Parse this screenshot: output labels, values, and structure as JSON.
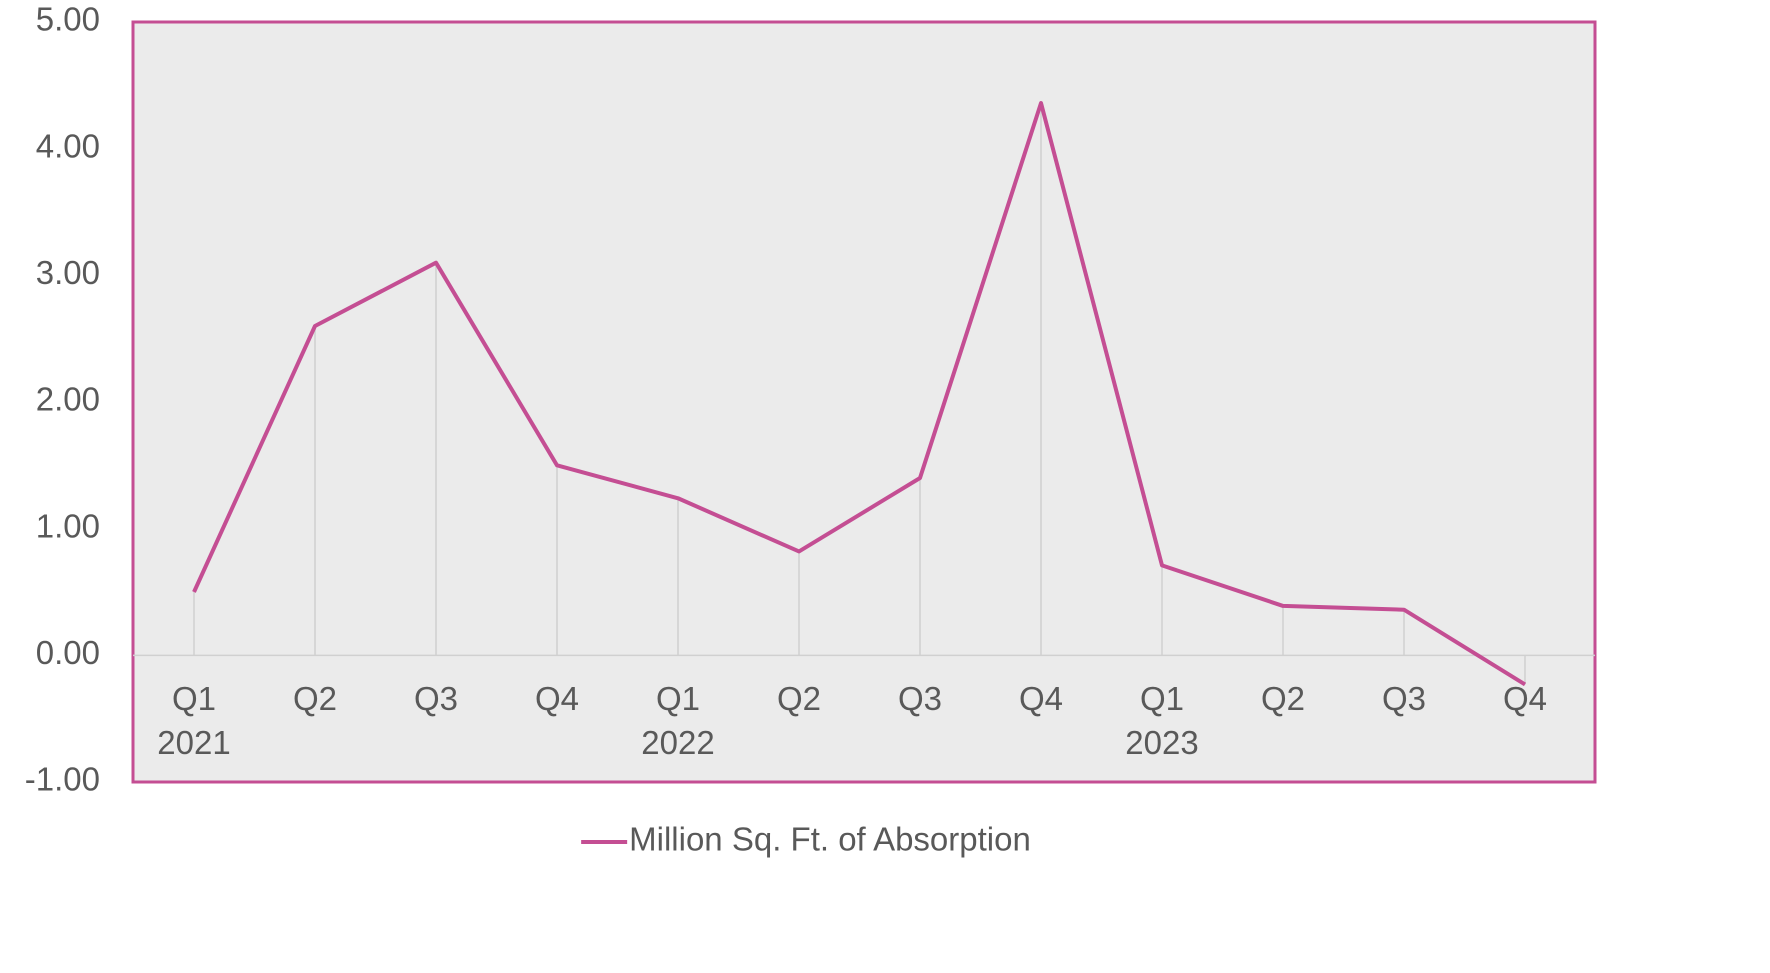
{
  "chart_data": {
    "type": "line",
    "categories": [
      "Q1",
      "Q2",
      "Q3",
      "Q4",
      "Q1",
      "Q2",
      "Q3",
      "Q4",
      "Q1",
      "Q2",
      "Q3",
      "Q4"
    ],
    "category_groups": [
      "2021",
      null,
      null,
      null,
      "2022",
      null,
      null,
      null,
      "2023",
      null,
      null,
      null
    ],
    "series": [
      {
        "name": "Million Sq. Ft. of Absorption",
        "color": "#c44e93",
        "values": [
          0.5,
          2.6,
          3.1,
          1.5,
          1.24,
          0.82,
          1.4,
          4.36,
          0.71,
          0.39,
          0.36,
          -0.23
        ]
      }
    ],
    "ylim": [
      -1,
      5
    ],
    "yticks": [
      {
        "value": -1,
        "label": "-1.00"
      },
      {
        "value": 0,
        "label": "0.00"
      },
      {
        "value": 1,
        "label": "1.00"
      },
      {
        "value": 2,
        "label": "2.00"
      },
      {
        "value": 3,
        "label": "3.00"
      },
      {
        "value": 4,
        "label": "4.00"
      },
      {
        "value": 5,
        "label": "5.00"
      }
    ],
    "grid": false,
    "drop_lines": true,
    "legend": "bottom"
  }
}
